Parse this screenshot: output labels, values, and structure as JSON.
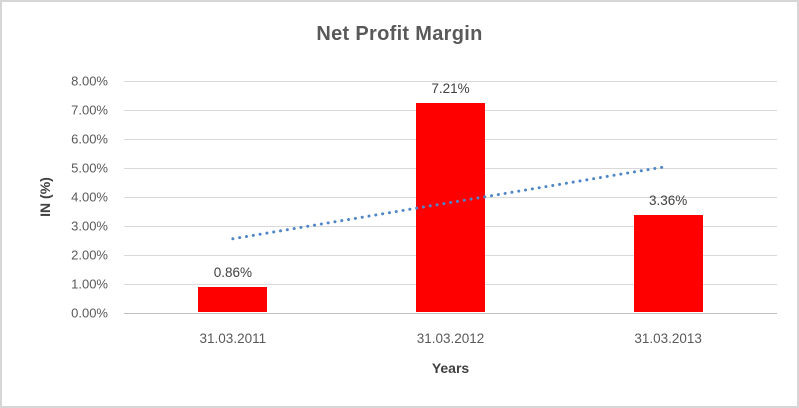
{
  "window": {
    "background": "#FFFFFF",
    "border_color": "#D6D6D6"
  },
  "chart_data": {
    "type": "bar",
    "title": "Net Profit Margin",
    "xlabel": "Years",
    "ylabel": "IN (%)",
    "categories": [
      "31.03.2011",
      "31.03.2012",
      "31.03.2013"
    ],
    "values": [
      0.86,
      7.21,
      3.36
    ],
    "data_labels": [
      "0.86%",
      "7.21%",
      "3.36%"
    ],
    "ylim": [
      0,
      8
    ],
    "ytick_labels": [
      "0.00%",
      "1.00%",
      "2.00%",
      "3.00%",
      "4.00%",
      "5.00%",
      "6.00%",
      "7.00%",
      "8.00%"
    ],
    "grid": true,
    "legend": false,
    "bar_color": "#FF0000",
    "trendline": {
      "type": "linear",
      "style": "dotted",
      "color": "#4E86C8",
      "start_value": 2.56,
      "end_value": 5.06
    },
    "colors": {
      "title_text": "#595959",
      "tick_text": "#595959",
      "data_label_text": "#404040",
      "axis_title_text": "#404040",
      "gridline": "#D9D9D9",
      "axis_line": "#BFBFBF"
    }
  }
}
